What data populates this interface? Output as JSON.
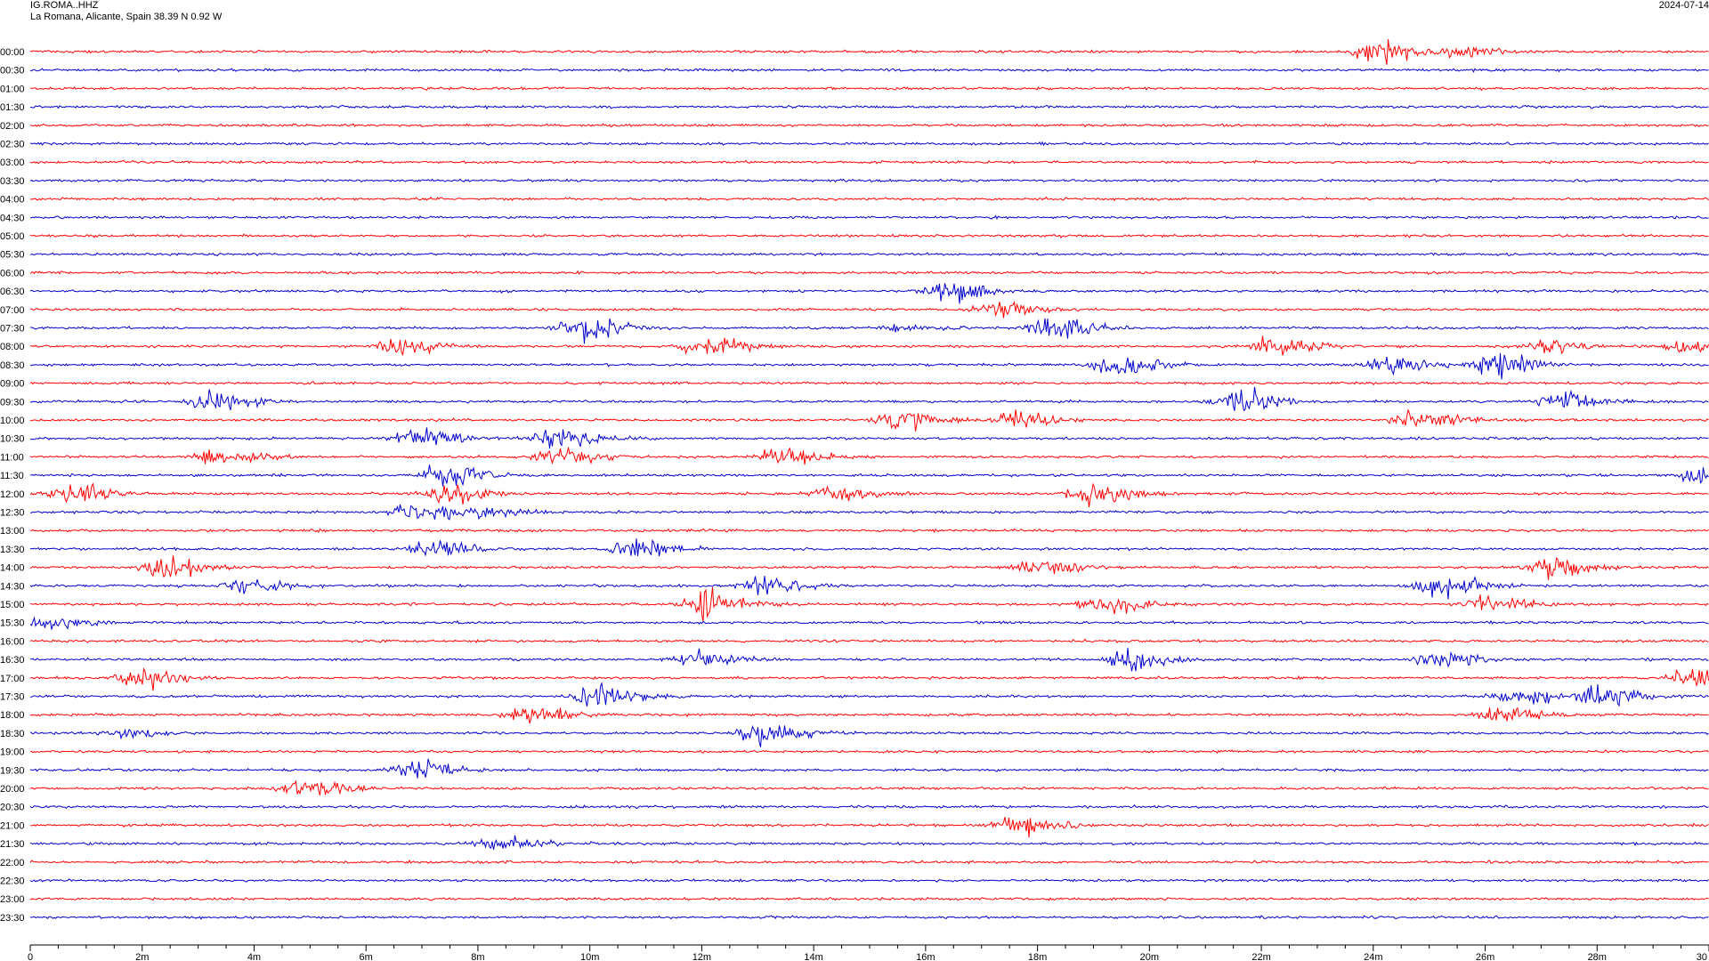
{
  "header": {
    "station": "IG.ROMA..HHZ",
    "location": "La Romana, Alicante, Spain  38.39 N 0.92 W",
    "date": "2024-07-14"
  },
  "chart_data": {
    "type": "line",
    "title": "",
    "xlabel": "",
    "ylabel": "",
    "colors": [
      "#ff0000",
      "#0000cc"
    ],
    "xlim": [
      0,
      30
    ],
    "x_ticks": [
      "0",
      "2m",
      "4m",
      "6m",
      "8m",
      "10m",
      "12m",
      "14m",
      "16m",
      "18m",
      "20m",
      "22m",
      "24m",
      "26m",
      "28m",
      "30"
    ],
    "row_labels": [
      "00:00",
      "00:30",
      "01:00",
      "01:30",
      "02:00",
      "02:30",
      "03:00",
      "03:30",
      "04:00",
      "04:30",
      "05:00",
      "05:30",
      "06:00",
      "06:30",
      "07:00",
      "07:30",
      "08:00",
      "08:30",
      "09:00",
      "09:30",
      "10:00",
      "10:30",
      "11:00",
      "11:30",
      "12:00",
      "12:30",
      "13:00",
      "13:30",
      "14:00",
      "14:30",
      "15:00",
      "15:30",
      "16:00",
      "16:30",
      "17:00",
      "17:30",
      "18:00",
      "18:30",
      "19:00",
      "19:30",
      "20:00",
      "20:30",
      "21:00",
      "21:30",
      "22:00",
      "22:30",
      "23:00",
      "23:30"
    ],
    "events": [
      {
        "row": "00:00",
        "minute": 24.0,
        "strength": 1.0
      },
      {
        "row": "00:00",
        "minute": 25.5,
        "strength": 0.4
      },
      {
        "row": "06:30",
        "minute": 16.3,
        "strength": 0.9
      },
      {
        "row": "07:00",
        "minute": 17.2,
        "strength": 0.7
      },
      {
        "row": "07:30",
        "minute": 9.8,
        "strength": 1.0
      },
      {
        "row": "07:30",
        "minute": 18.2,
        "strength": 1.0
      },
      {
        "row": "07:30",
        "minute": 15.5,
        "strength": 0.3
      },
      {
        "row": "08:00",
        "minute": 6.5,
        "strength": 0.9
      },
      {
        "row": "08:00",
        "minute": 11.9,
        "strength": 0.9
      },
      {
        "row": "08:00",
        "minute": 22.2,
        "strength": 0.8
      },
      {
        "row": "08:00",
        "minute": 29.6,
        "strength": 0.7
      },
      {
        "row": "08:00",
        "minute": 27.0,
        "strength": 0.5
      },
      {
        "row": "08:30",
        "minute": 19.3,
        "strength": 0.9
      },
      {
        "row": "08:30",
        "minute": 24.2,
        "strength": 0.8
      },
      {
        "row": "08:30",
        "minute": 26.1,
        "strength": 1.0
      },
      {
        "row": "09:30",
        "minute": 3.2,
        "strength": 0.9
      },
      {
        "row": "09:30",
        "minute": 21.5,
        "strength": 1.0
      },
      {
        "row": "09:30",
        "minute": 27.3,
        "strength": 0.8
      },
      {
        "row": "10:00",
        "minute": 15.5,
        "strength": 0.8
      },
      {
        "row": "10:00",
        "minute": 17.5,
        "strength": 0.8
      },
      {
        "row": "10:00",
        "minute": 24.7,
        "strength": 0.9
      },
      {
        "row": "10:30",
        "minute": 6.8,
        "strength": 0.8
      },
      {
        "row": "10:30",
        "minute": 9.3,
        "strength": 0.9
      },
      {
        "row": "11:00",
        "minute": 3.3,
        "strength": 0.7
      },
      {
        "row": "11:00",
        "minute": 9.3,
        "strength": 0.8
      },
      {
        "row": "11:00",
        "minute": 13.3,
        "strength": 0.9
      },
      {
        "row": "11:30",
        "minute": 7.3,
        "strength": 1.0
      },
      {
        "row": "11:30",
        "minute": 29.8,
        "strength": 0.6
      },
      {
        "row": "12:00",
        "minute": 0.7,
        "strength": 0.8
      },
      {
        "row": "12:00",
        "minute": 7.4,
        "strength": 0.8
      },
      {
        "row": "12:00",
        "minute": 14.3,
        "strength": 0.6
      },
      {
        "row": "12:00",
        "minute": 18.9,
        "strength": 1.0
      },
      {
        "row": "12:30",
        "minute": 6.8,
        "strength": 0.8
      },
      {
        "row": "12:30",
        "minute": 8.1,
        "strength": 0.5
      },
      {
        "row": "13:30",
        "minute": 7.1,
        "strength": 1.0
      },
      {
        "row": "13:30",
        "minute": 10.7,
        "strength": 0.9
      },
      {
        "row": "14:00",
        "minute": 2.4,
        "strength": 1.0
      },
      {
        "row": "14:00",
        "minute": 17.9,
        "strength": 0.7
      },
      {
        "row": "14:00",
        "minute": 27.1,
        "strength": 0.9
      },
      {
        "row": "14:30",
        "minute": 3.8,
        "strength": 0.6
      },
      {
        "row": "14:30",
        "minute": 13.0,
        "strength": 0.8
      },
      {
        "row": "14:30",
        "minute": 25.1,
        "strength": 1.0
      },
      {
        "row": "15:00",
        "minute": 12.0,
        "strength": 1.0
      },
      {
        "row": "15:00",
        "minute": 19.1,
        "strength": 0.9
      },
      {
        "row": "15:00",
        "minute": 26.0,
        "strength": 0.7
      },
      {
        "row": "15:30",
        "minute": 0.3,
        "strength": 0.6
      },
      {
        "row": "16:30",
        "minute": 11.8,
        "strength": 0.7
      },
      {
        "row": "16:30",
        "minute": 19.6,
        "strength": 1.0
      },
      {
        "row": "16:30",
        "minute": 25.1,
        "strength": 0.7
      },
      {
        "row": "17:00",
        "minute": 1.9,
        "strength": 0.9
      },
      {
        "row": "17:00",
        "minute": 29.6,
        "strength": 0.8
      },
      {
        "row": "17:30",
        "minute": 10.1,
        "strength": 1.0
      },
      {
        "row": "17:30",
        "minute": 26.5,
        "strength": 0.7
      },
      {
        "row": "17:30",
        "minute": 28.0,
        "strength": 0.9
      },
      {
        "row": "18:00",
        "minute": 8.8,
        "strength": 0.8
      },
      {
        "row": "18:00",
        "minute": 26.2,
        "strength": 0.7
      },
      {
        "row": "18:30",
        "minute": 1.5,
        "strength": 0.4
      },
      {
        "row": "18:30",
        "minute": 13.0,
        "strength": 1.0
      },
      {
        "row": "19:30",
        "minute": 6.8,
        "strength": 0.9
      },
      {
        "row": "20:00",
        "minute": 4.8,
        "strength": 0.8
      },
      {
        "row": "21:00",
        "minute": 17.6,
        "strength": 1.0
      },
      {
        "row": "21:30",
        "minute": 8.3,
        "strength": 0.7
      }
    ]
  }
}
